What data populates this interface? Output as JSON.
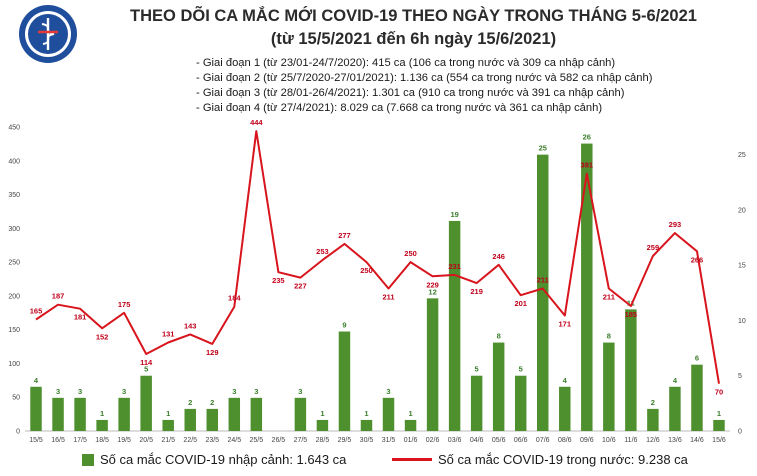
{
  "logo": {
    "icon": "ministry-of-health-emblem-icon",
    "top_text": "BỘ Y TẾ",
    "bottom_text": "MINISTRY OF HEALTH"
  },
  "title_line1": "THEO DÕI CA MẮC MỚI COVID-19 THEO NGÀY TRONG THÁNG 5-6/2021",
  "title_line2": "(từ 15/5/2021 đến 6h ngày 15/6/2021)",
  "notes": [
    "Giai đoạn 1 (từ 23/01-24/7/2020): 415 ca (106 ca trong nước và 309 ca nhập cảnh)",
    "Giai đoạn 2 (từ 25/7/2020-27/01/2021): 1.136 ca (554 ca trong nước và 582 ca nhập cảnh)",
    "Giai đoạn 3 (từ 28/01-26/4/2021): 1.301 ca (910 ca trong nước và 391 ca nhập cảnh)",
    "Giai đoạn 4 (từ 27/4/2021): 8.029 ca (7.668 ca trong nước và 361 ca nhập cảnh)"
  ],
  "chart_data": {
    "type": "bar+line",
    "categories": [
      "15/5",
      "16/5",
      "17/5",
      "18/5",
      "19/5",
      "20/5",
      "21/5",
      "22/5",
      "23/5",
      "24/5",
      "25/5",
      "26/5",
      "27/5",
      "28/5",
      "29/5",
      "30/5",
      "31/5",
      "01/6",
      "02/6",
      "03/6",
      "04/6",
      "05/6",
      "06/6",
      "07/6",
      "08/6",
      "09/6",
      "10/6",
      "11/6",
      "12/6",
      "13/6",
      "14/6",
      "15/6"
    ],
    "left_axis": {
      "ylim": [
        0,
        450
      ],
      "ticks": [
        0,
        50,
        100,
        150,
        200,
        250,
        300,
        350,
        400,
        450
      ]
    },
    "right_axis": {
      "ylim": [
        0,
        27.5
      ],
      "ticks": [
        0,
        5,
        10,
        15,
        20,
        25
      ]
    },
    "series": [
      {
        "name": "Số ca mắc COVID-19 nhập cảnh: 1.643 ca",
        "type": "bar",
        "axis": "right",
        "color": "#4e8f2e",
        "values": [
          4,
          3,
          3,
          1,
          3,
          5,
          1,
          2,
          2,
          3,
          3,
          0,
          3,
          1,
          9,
          1,
          3,
          1,
          12,
          19,
          5,
          8,
          5,
          25,
          4,
          26,
          8,
          11,
          2,
          4,
          6,
          1
        ],
        "labels": [
          "4",
          "3",
          "3",
          "1",
          "3",
          "5",
          "1",
          "2",
          "2",
          "3",
          "3",
          "",
          "3",
          "1",
          "9",
          "1",
          "3",
          "1",
          "12",
          "19",
          "5",
          "8",
          "5",
          "25",
          "4",
          "26",
          "8",
          "11",
          "2",
          "4",
          "6",
          "1"
        ]
      },
      {
        "name": "Số ca mắc COVID-19 trong nước: 9.238 ca",
        "type": "line",
        "axis": "left",
        "color": "#d8141c",
        "values": [
          165,
          187,
          181,
          152,
          175,
          114,
          131,
          143,
          129,
          184,
          444,
          235,
          227,
          253,
          277,
          250,
          211,
          250,
          229,
          231,
          219,
          246,
          201,
          211,
          171,
          381,
          211,
          185,
          259,
          293,
          266,
          70
        ],
        "labels": [
          "165",
          "187",
          "181",
          "152",
          "175",
          "114",
          "131",
          "143",
          "129",
          "184",
          "444",
          "235",
          "227",
          "253",
          "277",
          "250",
          "211",
          "250",
          "229",
          "231",
          "219",
          "246",
          "201",
          "211",
          "171",
          "381",
          "211",
          "185",
          "259",
          "293",
          "266",
          "70"
        ]
      }
    ]
  }
}
